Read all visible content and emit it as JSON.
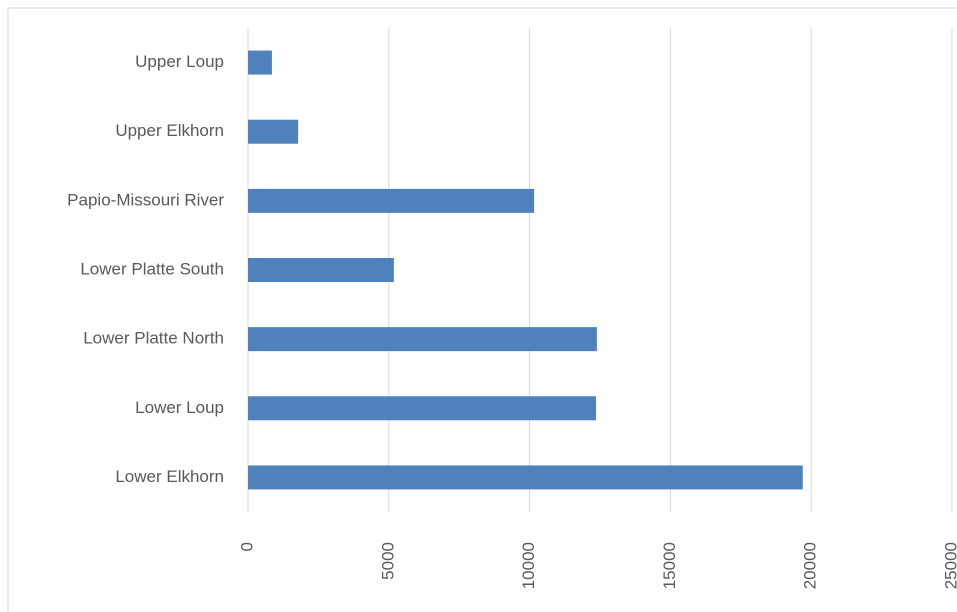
{
  "chart_data": {
    "type": "barh",
    "categories": [
      "Lower Elkhorn",
      "Lower Loup",
      "Lower Platte North",
      "Lower Platte South",
      "Papio-Missouri River",
      "Upper Elkhorn",
      "Upper Loup"
    ],
    "values": [
      19700,
      12360,
      12390,
      5180,
      10160,
      1780,
      850
    ],
    "color": "#4f81bd",
    "xlim": [
      0,
      25000
    ],
    "xticks": [
      0,
      5000,
      10000,
      15000,
      20000,
      25000
    ],
    "grid": true
  }
}
